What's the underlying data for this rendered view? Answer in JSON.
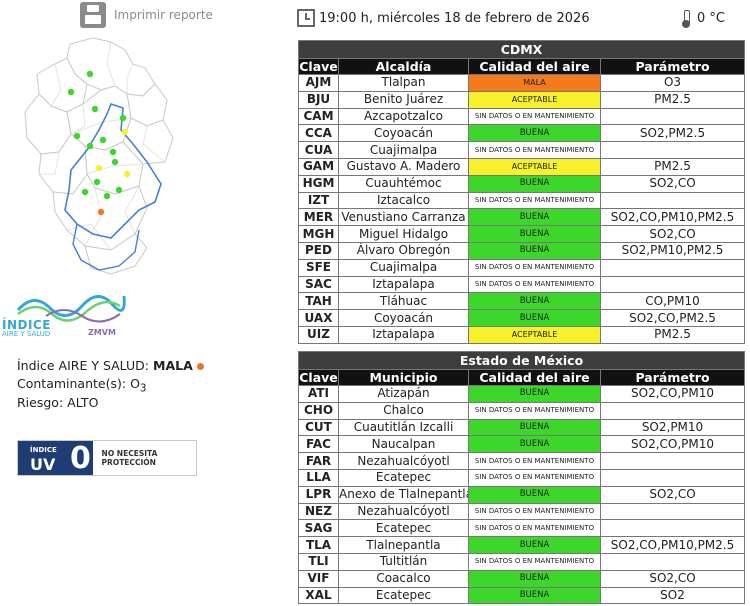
{
  "print": {
    "label": "Imprimir reporte",
    "icon": "printer-icon"
  },
  "header": {
    "datetime": "19:00 h, miércoles 18 de febrero de 2026",
    "temperature": "0 °C"
  },
  "info": {
    "index_label": "Índice AIRE Y SALUD:",
    "index_value": "MALA",
    "pollutant_label": "Contaminante(s):",
    "pollutant_value": "O",
    "pollutant_sub": "3",
    "risk_label": "Riesgo:",
    "risk_value": "ALTO",
    "risk_color": "#e8732a"
  },
  "logo": {
    "title": "ÍNDICE",
    "subtitle": "AIRE Y SALUD",
    "zone": "ZMVM"
  },
  "uv": {
    "small": "ÍNDICE",
    "label": "UV",
    "value": "0",
    "text": "NO NECESITA PROTECCIÓN"
  },
  "colors": {
    "buena": "#3dd62b",
    "aceptable": "#f6f12a",
    "mala": "#f47b1b",
    "header": "#111111"
  },
  "columns_cdmx": [
    "Clave",
    "Alcaldía",
    "Calidad del aire",
    "Parámetro"
  ],
  "columns_edomex": [
    "Clave",
    "Municipio",
    "Calidad del aire",
    "Parámetro"
  ],
  "cdmx": {
    "title": "CDMX",
    "rows": [
      {
        "clave": "AJM",
        "lugar": "Tlalpan",
        "calidad": "MALA",
        "nivel": "mala",
        "param": "O3"
      },
      {
        "clave": "BJU",
        "lugar": "Benito Juárez",
        "calidad": "ACEPTABLE",
        "nivel": "aceptable",
        "param": "PM2.5"
      },
      {
        "clave": "CAM",
        "lugar": "Azcapotzalco",
        "calidad": "SIN DATOS O EN MANTENIMIENTO",
        "nivel": "nd",
        "param": ""
      },
      {
        "clave": "CCA",
        "lugar": "Coyoacán",
        "calidad": "BUENA",
        "nivel": "buena",
        "param": "SO2,PM2.5"
      },
      {
        "clave": "CUA",
        "lugar": "Cuajimalpa",
        "calidad": "SIN DATOS O EN MANTENIMIENTO",
        "nivel": "nd",
        "param": ""
      },
      {
        "clave": "GAM",
        "lugar": "Gustavo A. Madero",
        "calidad": "ACEPTABLE",
        "nivel": "aceptable",
        "param": "PM2.5"
      },
      {
        "clave": "HGM",
        "lugar": "Cuauhtémoc",
        "calidad": "BUENA",
        "nivel": "buena",
        "param": "SO2,CO"
      },
      {
        "clave": "IZT",
        "lugar": "Iztacalco",
        "calidad": "SIN DATOS O EN MANTENIMIENTO",
        "nivel": "nd",
        "param": ""
      },
      {
        "clave": "MER",
        "lugar": "Venustiano Carranza",
        "calidad": "BUENA",
        "nivel": "buena",
        "param": "SO2,CO,PM10,PM2.5"
      },
      {
        "clave": "MGH",
        "lugar": "Miguel Hidalgo",
        "calidad": "BUENA",
        "nivel": "buena",
        "param": "SO2,CO"
      },
      {
        "clave": "PED",
        "lugar": "Álvaro Obregón",
        "calidad": "BUENA",
        "nivel": "buena",
        "param": "SO2,PM10,PM2.5"
      },
      {
        "clave": "SFE",
        "lugar": "Cuajimalpa",
        "calidad": "SIN DATOS O EN MANTENIMIENTO",
        "nivel": "nd",
        "param": ""
      },
      {
        "clave": "SAC",
        "lugar": "Iztapalapa",
        "calidad": "SIN DATOS O EN MANTENIMIENTO",
        "nivel": "nd",
        "param": ""
      },
      {
        "clave": "TAH",
        "lugar": "Tláhuac",
        "calidad": "BUENA",
        "nivel": "buena",
        "param": "CO,PM10"
      },
      {
        "clave": "UAX",
        "lugar": "Coyoacán",
        "calidad": "BUENA",
        "nivel": "buena",
        "param": "SO2,CO,PM2.5"
      },
      {
        "clave": "UIZ",
        "lugar": "Iztapalapa",
        "calidad": "ACEPTABLE",
        "nivel": "aceptable",
        "param": "PM2.5"
      }
    ]
  },
  "edomex": {
    "title": "Estado de México",
    "rows": [
      {
        "clave": "ATI",
        "lugar": "Atizapán",
        "calidad": "BUENA",
        "nivel": "buena",
        "param": "SO2,CO,PM10"
      },
      {
        "clave": "CHO",
        "lugar": "Chalco",
        "calidad": "SIN DATOS O EN MANTENIMIENTO",
        "nivel": "nd",
        "param": ""
      },
      {
        "clave": "CUT",
        "lugar": "Cuautitlán Izcalli",
        "calidad": "BUENA",
        "nivel": "buena",
        "param": "SO2,PM10"
      },
      {
        "clave": "FAC",
        "lugar": "Naucalpan",
        "calidad": "BUENA",
        "nivel": "buena",
        "param": "SO2,CO,PM10"
      },
      {
        "clave": "FAR",
        "lugar": "Nezahualcóyotl",
        "calidad": "SIN DATOS O EN MANTENIMIENTO",
        "nivel": "nd",
        "param": ""
      },
      {
        "clave": "LLA",
        "lugar": "Ecatepec",
        "calidad": "SIN DATOS O EN MANTENIMIENTO",
        "nivel": "nd",
        "param": ""
      },
      {
        "clave": "LPR",
        "lugar": "Anexo de Tlalnepantla",
        "calidad": "BUENA",
        "nivel": "buena",
        "param": "SO2,CO"
      },
      {
        "clave": "NEZ",
        "lugar": "Nezahualcóyotl",
        "calidad": "SIN DATOS O EN MANTENIMIENTO",
        "nivel": "nd",
        "param": ""
      },
      {
        "clave": "SAG",
        "lugar": "Ecatepec",
        "calidad": "SIN DATOS O EN MANTENIMIENTO",
        "nivel": "nd",
        "param": ""
      },
      {
        "clave": "TLA",
        "lugar": "Tlalnepantla",
        "calidad": "BUENA",
        "nivel": "buena",
        "param": "SO2,CO,PM10,PM2.5"
      },
      {
        "clave": "TLI",
        "lugar": "Tultitlán",
        "calidad": "SIN DATOS O EN MANTENIMIENTO",
        "nivel": "nd",
        "param": ""
      },
      {
        "clave": "VIF",
        "lugar": "Coacalco",
        "calidad": "BUENA",
        "nivel": "buena",
        "param": "SO2,CO"
      },
      {
        "clave": "XAL",
        "lugar": "Ecatepec",
        "calidad": "BUENA",
        "nivel": "buena",
        "param": "SO2"
      }
    ]
  }
}
